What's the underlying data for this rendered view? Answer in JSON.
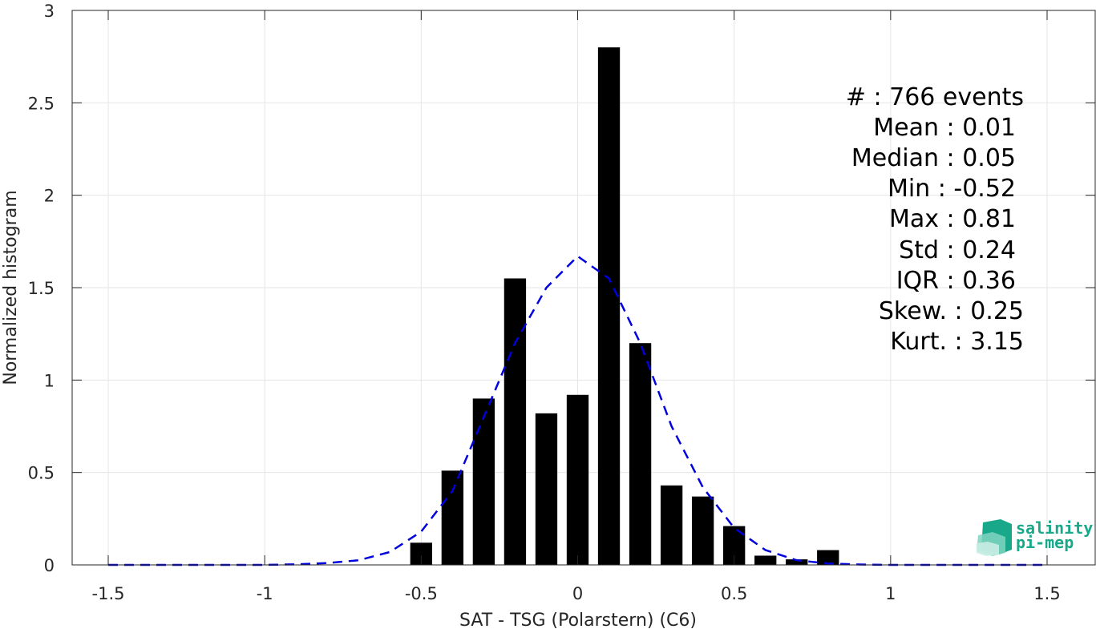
{
  "chart_data": {
    "type": "bar",
    "xlabel": "SAT - TSG (Polarstern) (C6)",
    "ylabel": "Normalized histogram",
    "xlim": [
      -1.5,
      1.5
    ],
    "ylim": [
      0,
      3
    ],
    "xticks": [
      -1.5,
      -1,
      -0.5,
      0,
      0.5,
      1,
      1.5
    ],
    "xtick_labels": [
      "-1.5",
      "-1",
      "-0.5",
      "0",
      "0.5",
      "1",
      "1.5"
    ],
    "yticks": [
      0,
      0.5,
      1,
      1.5,
      2,
      2.5,
      3
    ],
    "ytick_labels": [
      "0",
      "0.5",
      "1",
      "1.5",
      "2",
      "2.5",
      "3"
    ],
    "grid": true,
    "bar_width": 0.07,
    "bars": {
      "x": [
        -0.5,
        -0.4,
        -0.3,
        -0.2,
        -0.1,
        0.0,
        0.1,
        0.2,
        0.3,
        0.4,
        0.5,
        0.6,
        0.7,
        0.8
      ],
      "values": [
        0.12,
        0.51,
        0.9,
        1.55,
        0.82,
        0.92,
        2.8,
        1.2,
        0.43,
        0.37,
        0.21,
        0.05,
        0.03,
        0.08
      ],
      "color": "#000000"
    },
    "fit_curve": {
      "style": "dashed",
      "color": "#0000dd",
      "x": [
        -1.5,
        -1.4,
        -1.3,
        -1.2,
        -1.1,
        -1.0,
        -0.9,
        -0.8,
        -0.7,
        -0.6,
        -0.5,
        -0.4,
        -0.3,
        -0.2,
        -0.1,
        0.0,
        0.1,
        0.2,
        0.3,
        0.4,
        0.5,
        0.6,
        0.7,
        0.8,
        0.9,
        1.0,
        1.1,
        1.2,
        1.3,
        1.4,
        1.5
      ],
      "y": [
        0,
        0,
        0,
        0,
        0,
        0,
        0.003,
        0.01,
        0.025,
        0.07,
        0.18,
        0.4,
        0.8,
        1.2,
        1.5,
        1.67,
        1.55,
        1.2,
        0.75,
        0.42,
        0.2,
        0.08,
        0.025,
        0.008,
        0.002,
        0,
        0,
        0,
        0,
        0,
        0
      ]
    },
    "stats_lines": [
      "#  : 766 events",
      "Mean : 0.01",
      "Median : 0.05",
      "Min : -0.52",
      "Max : 0.81",
      "Std : 0.24",
      "IQR : 0.36",
      "Skew. : 0.25",
      "Kurt. : 3.15"
    ]
  },
  "logo": {
    "line1": "salinity",
    "line2": "pi-mep",
    "color": "#1aa88a"
  }
}
